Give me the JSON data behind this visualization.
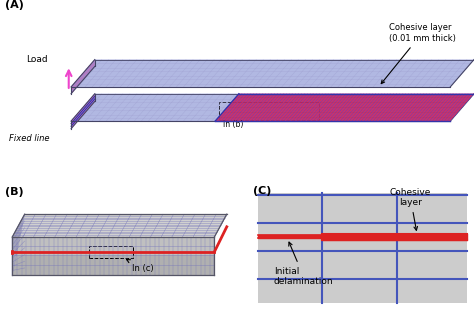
{
  "bg_color": "#ffffff",
  "label_A": "(A)",
  "label_B": "(B)",
  "label_C": "(C)",
  "panel_A": {
    "label_load": "Load",
    "label_fixed": "Fixed line",
    "label_inb": "In (b)",
    "label_cohesive": "Cohesive layer\n(0.01 mm thick)",
    "blue_mesh": "#9999cc",
    "pink_mesh": "#cc44aa",
    "cohesive_fill": "#cc2255",
    "blue_dark": "#3333aa",
    "gray_face": "#aaaaaa",
    "stripe_magenta": "#ee44aa",
    "stripe_blue": "#8888cc"
  },
  "panel_B": {
    "label_inc": "In (c)",
    "top_face": "#d0d0d0",
    "front_face": "#b0b0b0",
    "bottom_face": "#c8c8c8",
    "grid_color": "#7777bb",
    "red_line": "#dd2222",
    "outline": "#555566"
  },
  "panel_C": {
    "bg": "#cccccc",
    "grid_blue": "#4455bb",
    "red_band": "#dd2222",
    "label_cohesive": "Cohesive\nlayer",
    "label_delam": "Initial\ndelamination"
  }
}
